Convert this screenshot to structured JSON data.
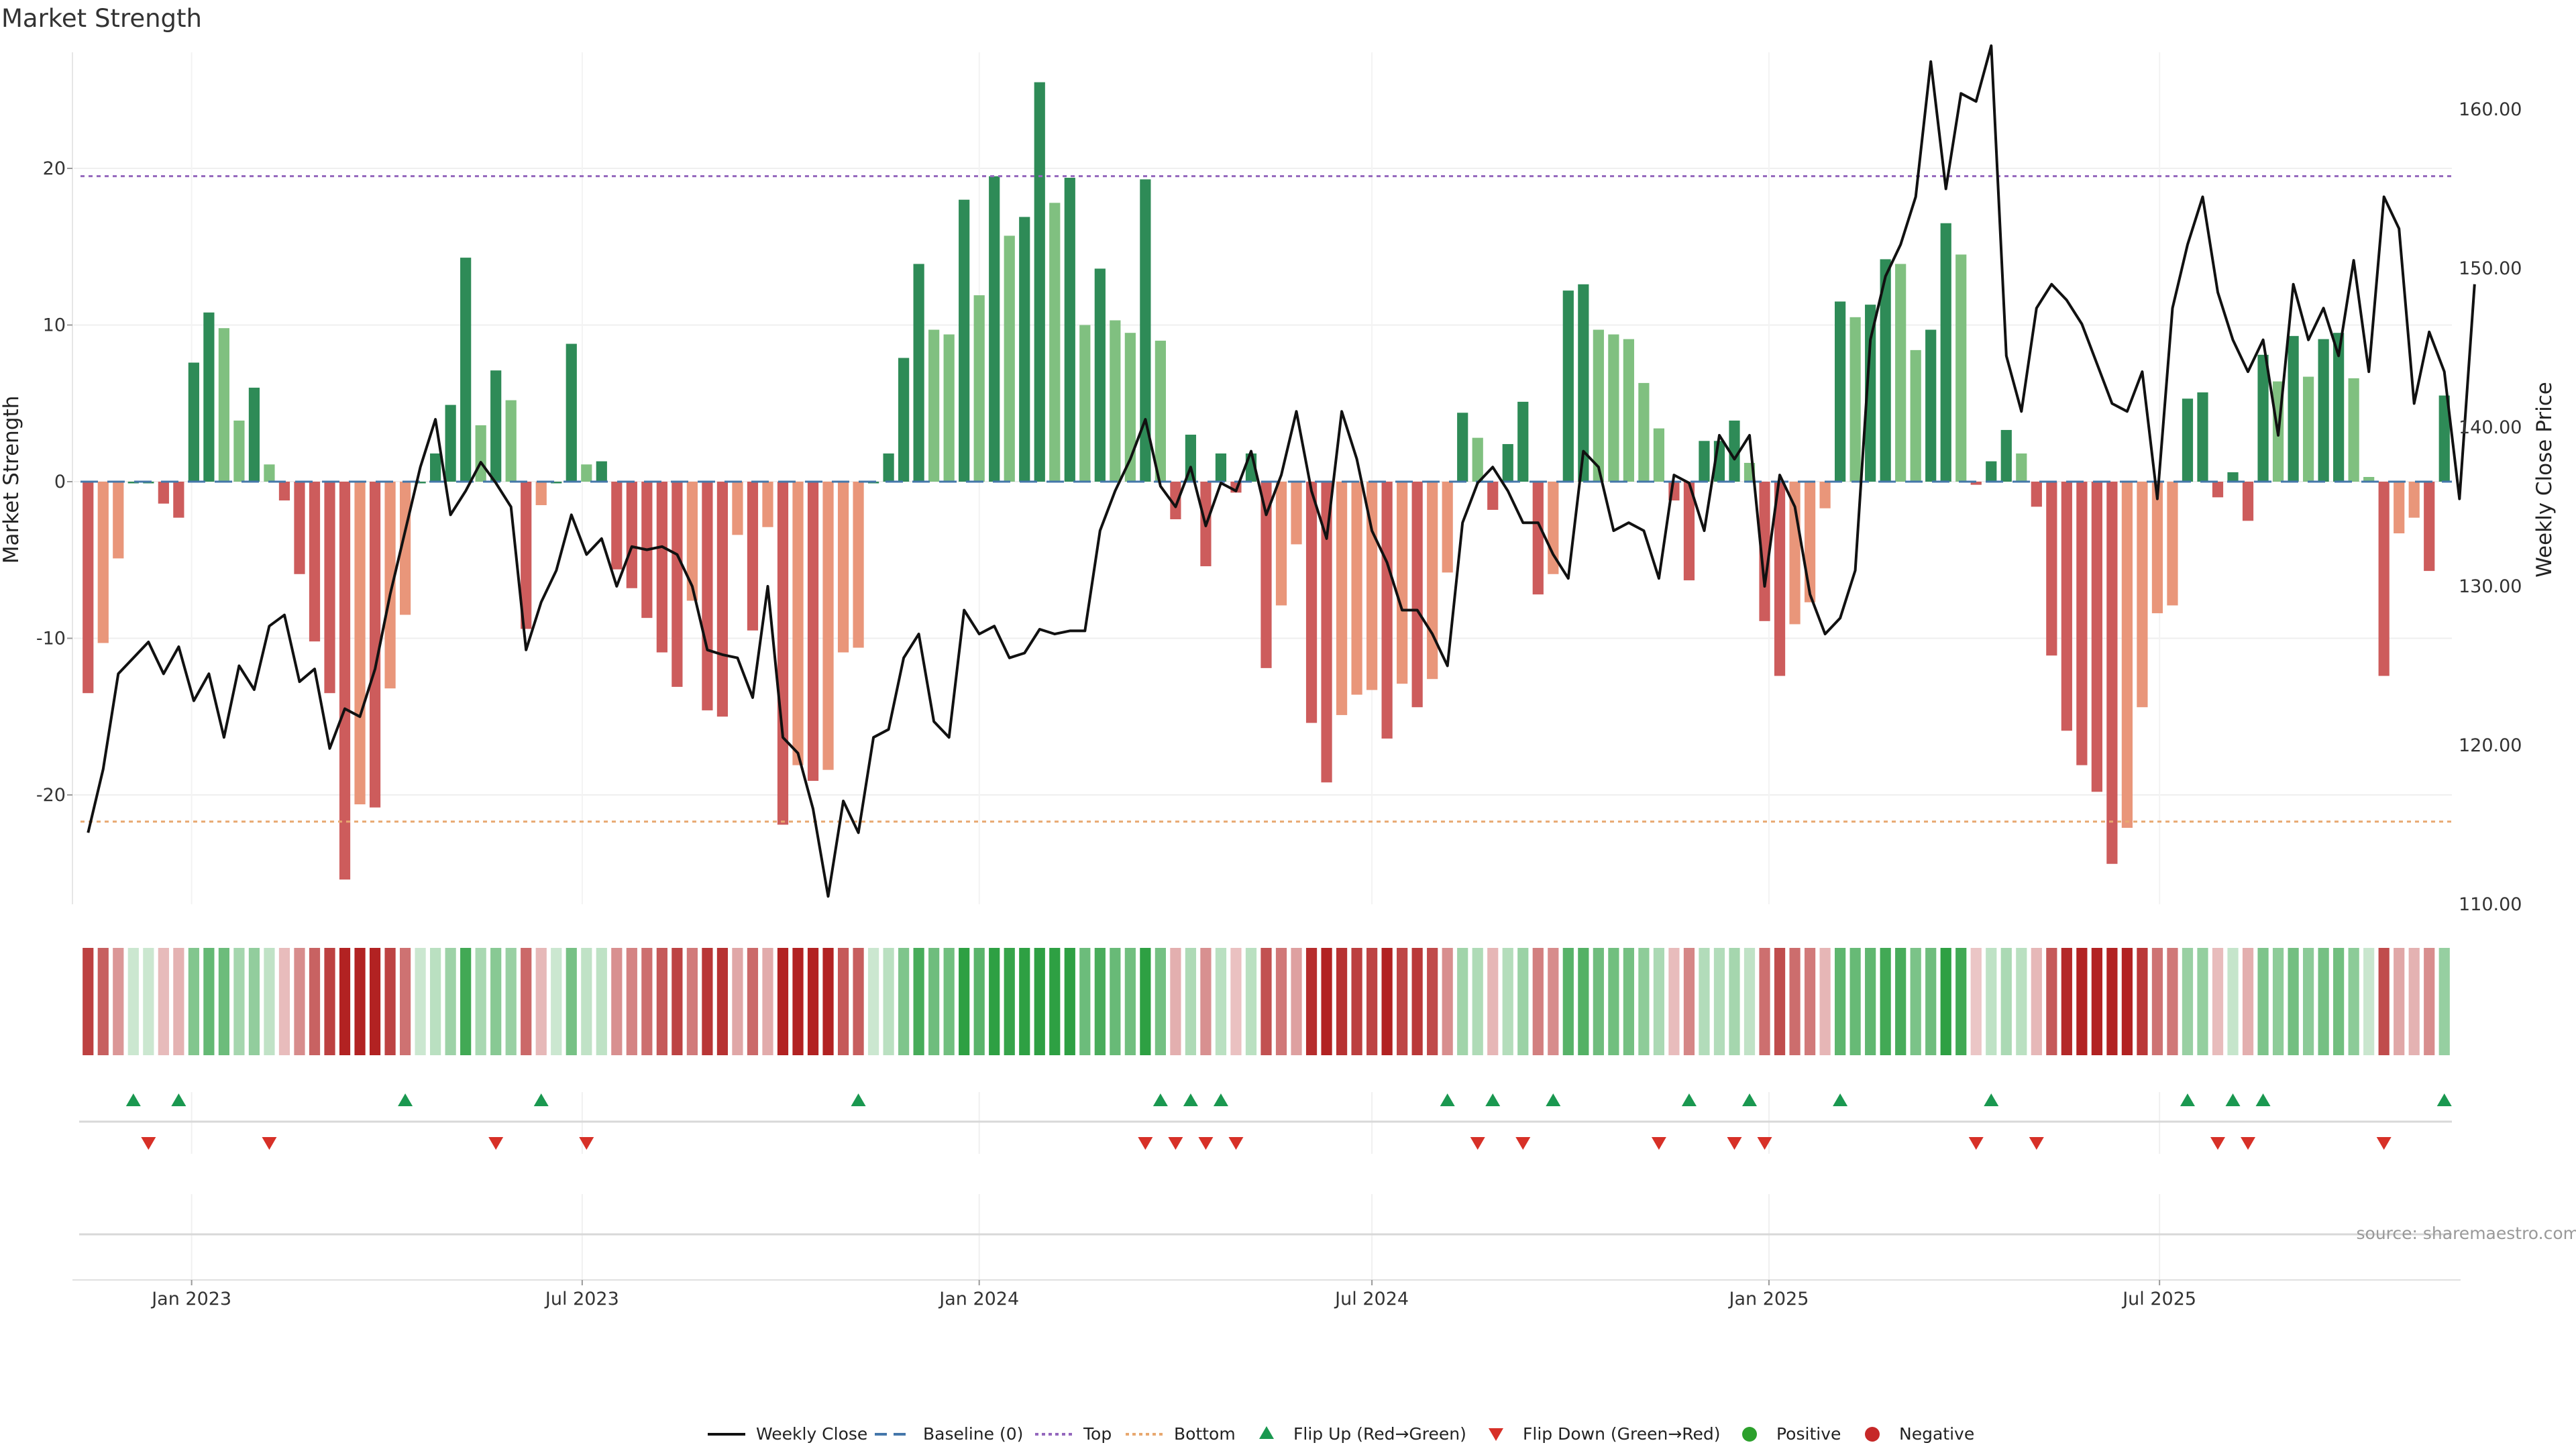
{
  "title": "Market Strength",
  "source": "source: sharemaestro.com",
  "colors": {
    "pos_strong": "#2e8b57",
    "pos_weak": "#80c080",
    "neg_strong": "#cd5c5c",
    "neg_weak": "#e9967a",
    "line": "#111111",
    "baseline": "#4477aa",
    "top": "#9467bd",
    "bottom": "#e8a870",
    "flip_up": "#1a9850",
    "flip_down": "#d73027",
    "positive": "#2ca02c",
    "negative": "#c62828"
  },
  "chart_data": {
    "type": "bar",
    "x_axis": {
      "start": "2022-11-14",
      "step_days": 7,
      "ticks": [
        "Jan 2023",
        "Jul 2023",
        "Jan 2024",
        "Jul 2024",
        "Jan 2025",
        "Jul 2025"
      ],
      "tick_dates": [
        "2023-01-01",
        "2023-07-01",
        "2024-01-01",
        "2024-07-01",
        "2025-01-01",
        "2025-07-01"
      ]
    },
    "left_axis": {
      "label": "Market Strength",
      "ylim": [
        -27.5,
        27.5
      ],
      "ticks": [
        -20,
        -10,
        0,
        10,
        20
      ]
    },
    "right_axis": {
      "label": "Weekly Close Price",
      "ylim": [
        110,
        163.5
      ],
      "ticks": [
        "110.00",
        "120.00",
        "130.00",
        "140.00",
        "150.00",
        "160.00"
      ]
    },
    "reference_lines": {
      "baseline": 0,
      "top": 19.5,
      "bottom": -21.7
    },
    "strength": [
      -13.5,
      -10.3,
      -4.9,
      0,
      0,
      -1.4,
      -2.3,
      7.6,
      10.8,
      9.8,
      3.9,
      6.0,
      1.1,
      -1.2,
      -5.9,
      -10.2,
      -13.5,
      -25.4,
      -20.6,
      -20.8,
      -13.2,
      -8.5,
      0,
      1.8,
      4.9,
      14.3,
      3.6,
      7.1,
      5.2,
      -9.4,
      -1.5,
      0,
      8.8,
      1.1,
      1.3,
      -5.6,
      -6.8,
      -8.7,
      -10.9,
      -13.1,
      -7.6,
      -14.6,
      -15.0,
      -3.4,
      -9.5,
      -2.9,
      -21.9,
      -18.1,
      -19.1,
      -18.4,
      -10.9,
      -10.6,
      0,
      1.8,
      7.9,
      13.9,
      9.7,
      9.4,
      18.0,
      11.9,
      19.5,
      15.7,
      16.9,
      25.5,
      17.8,
      19.4,
      10.0,
      13.6,
      10.3,
      9.5,
      19.3,
      9.0,
      -2.4,
      3.0,
      -5.4,
      1.8,
      -0.7,
      1.8,
      -11.9,
      -7.9,
      -4.0,
      -15.4,
      -19.2,
      -14.9,
      -13.6,
      -13.3,
      -16.4,
      -12.9,
      -14.4,
      -12.6,
      -5.8,
      4.4,
      2.8,
      -1.8,
      2.4,
      5.1,
      -7.2,
      -5.9,
      12.2,
      12.6,
      9.7,
      9.4,
      9.1,
      6.3,
      3.4,
      -1.2,
      -6.3,
      2.6,
      2.6,
      3.9,
      1.2,
      -8.9,
      -12.4,
      -9.1,
      -7.7,
      -1.7,
      11.5,
      10.5,
      11.3,
      14.2,
      13.9,
      8.4,
      9.7,
      16.5,
      14.5,
      -0.2,
      1.3,
      3.3,
      1.8,
      -1.6,
      -11.1,
      -15.9,
      -18.1,
      -19.8,
      -24.4,
      -22.1,
      -14.4,
      -8.4,
      -7.9,
      5.3,
      5.7,
      -1.0,
      0.6,
      -2.5,
      8.1,
      6.4,
      9.3,
      6.7,
      9.1,
      9.5,
      6.6,
      0.3,
      -12.4,
      -3.3,
      -2.3,
      -5.7,
      5.5
    ],
    "close": [
      114.5,
      118.5,
      124.5,
      125.5,
      126.5,
      124.5,
      126.2,
      122.8,
      124.5,
      120.5,
      125.0,
      123.5,
      127.5,
      128.2,
      124.0,
      124.8,
      119.8,
      122.3,
      121.8,
      124.8,
      129.5,
      133.5,
      137.5,
      140.5,
      134.5,
      136.0,
      137.8,
      136.5,
      135.0,
      126.0,
      129.0,
      131.0,
      134.5,
      132.0,
      133.0,
      130.0,
      132.5,
      132.3,
      132.5,
      132.0,
      130.0,
      126.0,
      125.7,
      125.5,
      123.0,
      130.0,
      120.5,
      119.5,
      116.0,
      110.5,
      116.5,
      114.5,
      120.5,
      121.0,
      125.5,
      127.0,
      121.5,
      120.5,
      128.5,
      127.0,
      127.5,
      125.5,
      125.8,
      127.3,
      127.0,
      127.2,
      127.2,
      133.5,
      136.0,
      138.0,
      140.5,
      136.3,
      135.0,
      137.5,
      133.8,
      136.5,
      136.0,
      138.5,
      134.5,
      137.0,
      141.0,
      136.0,
      133.0,
      141.0,
      138.0,
      133.5,
      131.5,
      128.5,
      128.5,
      127.0,
      125.0,
      134.0,
      136.5,
      137.5,
      136.0,
      134.0,
      134.0,
      132.0,
      130.5,
      138.5,
      137.5,
      133.5,
      134.0,
      133.5,
      130.5,
      137.0,
      136.5,
      133.5,
      139.5,
      138.0,
      139.5,
      130.0,
      137.0,
      135.0,
      129.5,
      127.0,
      128.0,
      131.0,
      145.5,
      149.5,
      151.5,
      154.5,
      163.0,
      155.0,
      161.0,
      160.5,
      164.0,
      144.5,
      141.0,
      147.5,
      149.0,
      148.0,
      146.5,
      144.0,
      141.5,
      141.0,
      143.5,
      135.5,
      147.5,
      151.5,
      154.5,
      148.5,
      145.5,
      143.5,
      145.5,
      139.5,
      149.0,
      145.5,
      147.5,
      144.5,
      150.5,
      143.5,
      154.5,
      152.5,
      141.5,
      146.0,
      143.5,
      135.5,
      149.0
    ],
    "flip_up_indices": [
      3,
      6,
      21,
      30,
      51,
      71,
      73,
      75,
      90,
      93,
      97,
      106,
      110,
      116,
      126,
      139,
      142,
      144,
      156
    ],
    "flip_down_indices": [
      4,
      12,
      27,
      33,
      70,
      72,
      74,
      76,
      92,
      95,
      104,
      109,
      111,
      125,
      129,
      141,
      143,
      152
    ],
    "legend": [
      "Weekly Close",
      "Baseline (0)",
      "Top",
      "Bottom",
      "Flip Up (Red→Green)",
      "Flip Down (Green→Red)",
      "Positive",
      "Negative"
    ]
  }
}
